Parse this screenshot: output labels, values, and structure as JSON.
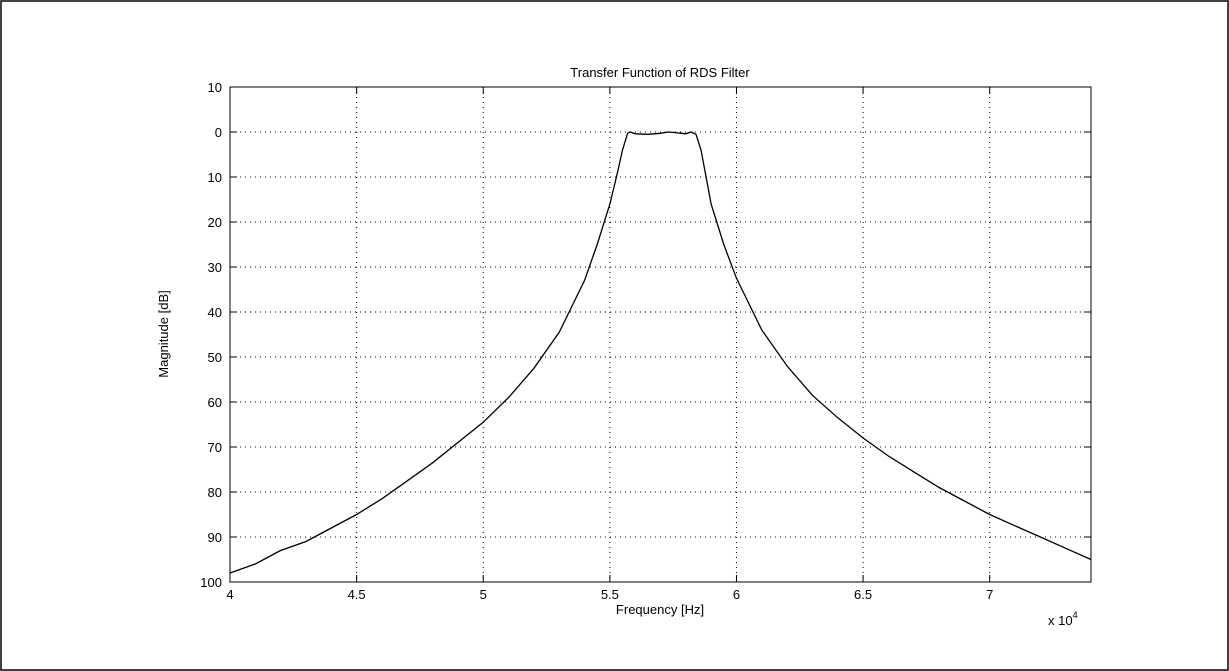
{
  "chart_data": {
    "type": "line",
    "title": "Transfer Function of RDS Filter",
    "xlabel": "Frequency [Hz]",
    "ylabel": "Magnitude [dB]",
    "x_scale_note": "x 10",
    "x_scale_exponent": "4",
    "xlim": [
      40000,
      74000
    ],
    "ylim": [
      -100,
      10
    ],
    "x_ticks": [
      40000,
      45000,
      50000,
      55000,
      60000,
      65000,
      70000
    ],
    "x_tick_labels": [
      "4",
      "4.5",
      "5",
      "5.5",
      "6",
      "6.5",
      "7"
    ],
    "y_ticks": [
      10,
      0,
      -10,
      -20,
      -30,
      -40,
      -50,
      -60,
      -70,
      -80,
      -90,
      -100
    ],
    "y_tick_labels": [
      "10",
      "0",
      "10",
      "20",
      "30",
      "40",
      "50",
      "60",
      "70",
      "80",
      "90",
      "100"
    ],
    "grid": true,
    "line_color": "#000000",
    "series": [
      {
        "x": [
          40000,
          41000,
          42000,
          43000,
          44000,
          45000,
          46000,
          47000,
          48000,
          49000,
          50000,
          51000,
          52000,
          53000,
          54000,
          54500,
          55000,
          55300,
          55500,
          55700,
          55800,
          56000,
          56500,
          57000,
          57300,
          57500,
          58000,
          58200,
          58400,
          58600,
          58800,
          59000,
          59500,
          60000,
          61000,
          62000,
          63000,
          64000,
          65000,
          66000,
          67000,
          68000,
          69000,
          70000,
          71000,
          72000,
          73000,
          74000
        ],
        "y": [
          -98,
          -96,
          -93,
          -91,
          -88,
          -85,
          -81.5,
          -77.5,
          -73.5,
          -69,
          -64.5,
          -59,
          -52.5,
          -44.5,
          -33,
          -25,
          -16,
          -9,
          -4,
          -0.3,
          0,
          -0.4,
          -0.5,
          -0.3,
          0,
          -0.1,
          -0.4,
          0,
          -0.5,
          -4,
          -10,
          -16,
          -25,
          -32.5,
          -44,
          -52,
          -58.5,
          -63.5,
          -68,
          -72,
          -75.5,
          -79,
          -82,
          -85,
          -87.5,
          -90,
          -92.5,
          -95
        ]
      }
    ]
  }
}
